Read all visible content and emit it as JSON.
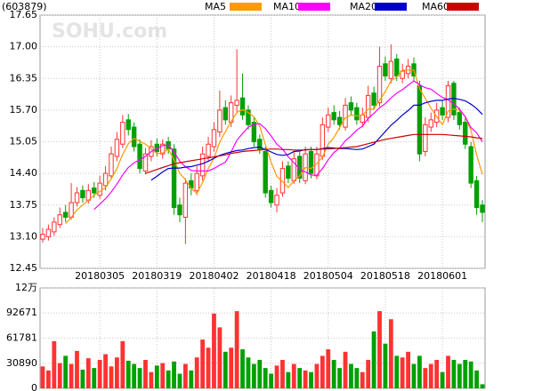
{
  "chart_data": {
    "type": "candlestick",
    "title": "(603879)",
    "watermark": "SOHU.com",
    "categories": [
      null,
      null,
      null,
      null,
      null,
      null,
      null,
      null,
      null,
      null,
      "20180305",
      null,
      null,
      null,
      null,
      null,
      null,
      null,
      null,
      null,
      "20180319",
      null,
      null,
      null,
      null,
      null,
      null,
      null,
      null,
      null,
      "20180402",
      null,
      null,
      null,
      null,
      null,
      null,
      null,
      null,
      null,
      "20180418",
      null,
      null,
      null,
      null,
      null,
      null,
      null,
      null,
      null,
      "20180504",
      null,
      null,
      null,
      null,
      null,
      null,
      null,
      null,
      null,
      "20180518",
      null,
      null,
      null,
      null,
      null,
      null,
      null,
      null,
      null,
      "20180601",
      null,
      null,
      null,
      null,
      null,
      null,
      null
    ],
    "open": [
      13.05,
      13.1,
      13.2,
      13.35,
      13.6,
      13.5,
      13.8,
      14.05,
      13.85,
      14.1,
      13.95,
      14.15,
      14.35,
      14.75,
      15.0,
      15.5,
      15.35,
      15.0,
      14.45,
      14.75,
      15.0,
      14.8,
      15.05,
      14.9,
      13.75,
      13.5,
      14.25,
      14.05,
      14.35,
      14.75,
      14.95,
      15.25,
      15.75,
      15.45,
      15.8,
      15.95,
      15.7,
      15.45,
      15.1,
      14.85,
      14.05,
      13.75,
      14.0,
      14.55,
      14.25,
      14.75,
      14.25,
      14.85,
      14.35,
      14.75,
      15.35,
      15.65,
      15.55,
      15.35,
      15.85,
      15.75,
      15.45,
      15.55,
      16.05,
      15.85,
      16.65,
      16.35,
      16.75,
      16.35,
      16.45,
      16.65,
      16.2,
      14.85,
      15.35,
      15.45,
      15.75,
      15.55,
      16.25,
      15.65,
      15.45,
      14.95,
      14.25,
      13.75
    ],
    "high": [
      13.28,
      13.35,
      13.5,
      13.7,
      13.75,
      14.2,
      14.12,
      14.15,
      14.18,
      14.22,
      14.35,
      14.55,
      14.95,
      15.25,
      15.6,
      15.62,
      15.45,
      15.1,
      14.92,
      15.08,
      15.12,
      15.1,
      15.15,
      15.0,
      13.9,
      14.3,
      14.4,
      14.55,
      14.95,
      15.15,
      15.45,
      16.1,
      15.9,
      16.0,
      16.95,
      16.45,
      15.8,
      15.55,
      15.2,
      14.95,
      14.15,
      14.1,
      14.65,
      14.65,
      14.85,
      14.85,
      14.95,
      14.95,
      14.95,
      15.55,
      15.75,
      15.8,
      15.68,
      15.95,
      15.98,
      15.85,
      15.75,
      16.2,
      16.18,
      17.0,
      16.8,
      17.05,
      16.85,
      16.65,
      16.75,
      16.78,
      16.3,
      15.55,
      15.65,
      15.85,
      15.9,
      16.3,
      16.3,
      15.75,
      15.55,
      15.05,
      14.35,
      13.85
    ],
    "low": [
      12.98,
      13.02,
      13.12,
      13.28,
      13.4,
      13.45,
      13.72,
      13.8,
      13.78,
      13.9,
      13.88,
      14.05,
      14.28,
      14.65,
      14.92,
      15.18,
      14.85,
      14.4,
      14.38,
      14.65,
      14.75,
      14.7,
      14.8,
      13.55,
      13.4,
      12.95,
      13.95,
      13.95,
      14.25,
      14.65,
      14.85,
      15.15,
      15.4,
      15.35,
      15.65,
      15.5,
      15.3,
      14.95,
      14.8,
      13.9,
      13.7,
      13.6,
      13.92,
      14.2,
      14.18,
      14.2,
      14.18,
      14.3,
      14.28,
      14.68,
      15.25,
      15.4,
      15.3,
      15.28,
      15.6,
      15.4,
      15.35,
      15.45,
      15.7,
      15.78,
      16.3,
      16.25,
      16.3,
      16.25,
      16.35,
      16.3,
      14.65,
      14.75,
      15.25,
      15.35,
      15.5,
      15.45,
      15.5,
      15.3,
      14.9,
      14.1,
      13.55,
      13.4
    ],
    "close": [
      13.15,
      13.25,
      13.4,
      13.55,
      13.5,
      13.8,
      14.0,
      13.9,
      14.05,
      14.0,
      14.2,
      14.4,
      14.8,
      15.1,
      15.45,
      15.3,
      14.95,
      14.5,
      14.8,
      14.95,
      14.85,
      15.0,
      14.9,
      13.7,
      13.55,
      14.2,
      14.1,
      14.4,
      14.8,
      15.0,
      15.3,
      15.7,
      15.5,
      15.85,
      15.9,
      15.6,
      15.4,
      15.05,
      14.9,
      14.0,
      13.8,
      13.95,
      14.5,
      14.3,
      14.7,
      14.3,
      14.8,
      14.4,
      14.8,
      15.4,
      15.6,
      15.5,
      15.4,
      15.8,
      15.7,
      15.5,
      15.6,
      16.0,
      15.8,
      16.6,
      16.4,
      16.7,
      16.4,
      16.5,
      16.6,
      16.4,
      14.8,
      15.4,
      15.5,
      15.7,
      15.6,
      16.2,
      15.6,
      15.4,
      15.0,
      14.2,
      13.7,
      13.6
    ],
    "volume": [
      27000,
      22000,
      58000,
      31000,
      40000,
      30000,
      46000,
      23000,
      37000,
      25000,
      35000,
      42000,
      27000,
      38000,
      58000,
      34000,
      30000,
      25000,
      35000,
      20000,
      28000,
      31000,
      22000,
      33000,
      18000,
      30000,
      22000,
      38000,
      60000,
      50000,
      92000,
      75000,
      45000,
      50000,
      95000,
      48000,
      38000,
      30000,
      35000,
      25000,
      18000,
      28000,
      35000,
      20000,
      30000,
      25000,
      22000,
      20000,
      30000,
      40000,
      48000,
      35000,
      25000,
      45000,
      30000,
      25000,
      20000,
      35000,
      70000,
      95000,
      55000,
      85000,
      40000,
      38000,
      45000,
      30000,
      40000,
      25000,
      30000,
      35000,
      20000,
      40000,
      35000,
      30000,
      35000,
      33000,
      22000,
      5000
    ],
    "up_color": "#ff3232",
    "down_color": "#00a000",
    "series": [
      {
        "name": "MA5",
        "color": "#ff9900",
        "values": [
          null,
          null,
          null,
          null,
          13.37,
          13.5,
          13.65,
          13.75,
          13.85,
          13.95,
          14.03,
          14.11,
          14.29,
          14.5,
          14.79,
          15.01,
          15.12,
          15.06,
          15.0,
          14.9,
          14.81,
          14.82,
          14.9,
          14.68,
          14.4,
          14.27,
          14.09,
          13.99,
          14.21,
          14.5,
          14.72,
          15.04,
          15.26,
          15.47,
          15.65,
          15.71,
          15.65,
          15.56,
          15.37,
          14.99,
          14.63,
          14.34,
          14.23,
          14.11,
          14.25,
          14.35,
          14.52,
          14.5,
          14.6,
          14.74,
          15.0,
          15.14,
          15.34,
          15.54,
          15.6,
          15.58,
          15.6,
          15.72,
          15.72,
          15.9,
          16.08,
          16.3,
          16.38,
          16.52,
          16.52,
          16.52,
          16.14,
          15.94,
          15.74,
          15.56,
          15.4,
          15.68,
          15.72,
          15.7,
          15.56,
          15.28,
          14.78,
          14.38
        ]
      },
      {
        "name": "MA10",
        "color": "#ff00ff",
        "values": [
          null,
          null,
          null,
          null,
          null,
          null,
          null,
          null,
          null,
          13.66,
          13.77,
          13.88,
          14.02,
          14.18,
          14.37,
          14.52,
          14.62,
          14.68,
          14.75,
          14.85,
          14.91,
          14.97,
          14.98,
          14.84,
          14.65,
          14.54,
          14.46,
          14.45,
          14.45,
          14.45,
          14.5,
          14.57,
          14.63,
          14.84,
          15.08,
          15.22,
          15.35,
          15.41,
          15.42,
          15.32,
          15.17,
          15.0,
          14.9,
          14.74,
          14.62,
          14.49,
          14.43,
          14.37,
          14.36,
          14.5,
          14.68,
          14.83,
          14.92,
          15.07,
          15.17,
          15.29,
          15.37,
          15.53,
          15.63,
          15.75,
          15.83,
          15.95,
          16.05,
          16.12,
          16.21,
          16.3,
          16.22,
          16.16,
          16.13,
          16.04,
          15.96,
          15.91,
          15.83,
          15.72,
          15.56,
          15.34,
          15.23,
          15.05
        ]
      },
      {
        "name": "MA20",
        "color": "#0000cc",
        "values": [
          null,
          null,
          null,
          null,
          null,
          null,
          null,
          null,
          null,
          null,
          null,
          null,
          null,
          null,
          null,
          null,
          null,
          null,
          null,
          14.26,
          14.34,
          14.43,
          14.5,
          14.51,
          14.51,
          14.53,
          14.54,
          14.57,
          14.6,
          14.65,
          14.71,
          14.77,
          14.81,
          14.84,
          14.87,
          14.88,
          14.91,
          14.93,
          14.94,
          14.89,
          14.84,
          14.79,
          14.77,
          14.79,
          14.85,
          14.86,
          14.89,
          14.89,
          14.89,
          14.91,
          14.93,
          14.92,
          14.91,
          14.91,
          14.9,
          14.89,
          14.9,
          14.95,
          15.0,
          15.13,
          15.26,
          15.39,
          15.49,
          15.6,
          15.69,
          15.8,
          15.8,
          15.85,
          15.88,
          15.9,
          15.9,
          15.93,
          15.94,
          15.92,
          15.89,
          15.82,
          15.73,
          15.61
        ]
      },
      {
        "name": "MA60",
        "color": "#cc0000",
        "values": [
          null,
          null,
          null,
          null,
          null,
          null,
          null,
          null,
          null,
          null,
          null,
          null,
          null,
          null,
          null,
          null,
          null,
          null,
          14.4,
          14.44,
          14.48,
          14.52,
          14.56,
          14.6,
          14.62,
          14.64,
          14.66,
          14.68,
          14.7,
          14.72,
          14.74,
          14.76,
          14.78,
          14.81,
          14.83,
          14.85,
          14.86,
          14.87,
          14.88,
          14.89,
          14.9,
          14.9,
          14.89,
          14.89,
          14.88,
          14.88,
          14.88,
          14.89,
          14.89,
          14.9,
          14.9,
          14.91,
          14.92,
          14.93,
          14.94,
          14.95,
          14.98,
          15.01,
          15.04,
          15.07,
          15.1,
          15.12,
          15.14,
          15.16,
          15.18,
          15.2,
          15.2,
          15.2,
          15.2,
          15.2,
          15.2,
          15.19,
          15.18,
          15.17,
          15.16,
          15.15,
          15.13,
          15.12
        ]
      }
    ],
    "ylim": [
      12.45,
      17.65
    ],
    "yticks": [
      17.65,
      {
        "value": 17.0,
        "label": "17.00"
      },
      16.35,
      {
        "value": 15.7,
        "label": "15.70"
      },
      15.05,
      {
        "value": 14.4,
        "label": "14.40"
      },
      13.75,
      {
        "value": 13.1,
        "label": "13.10"
      },
      12.45
    ],
    "volume_ylim": [
      0,
      123561
    ],
    "volume_yticks": [
      0,
      30890,
      61781,
      92671,
      {
        "value": 123561,
        "label": "12万"
      }
    ],
    "grid": true
  }
}
